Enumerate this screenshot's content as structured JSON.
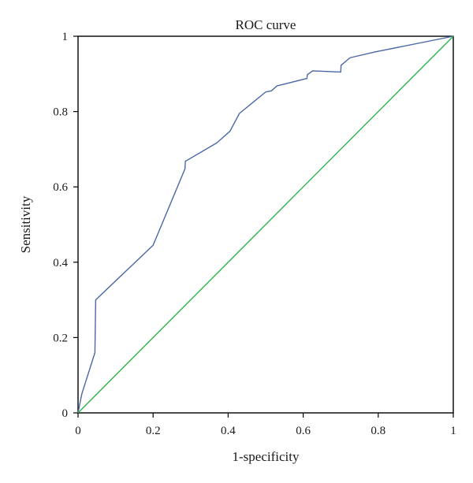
{
  "chart_data": {
    "type": "line",
    "title": "ROC curve",
    "xlabel": "1-specificity",
    "ylabel": "Sensitivity",
    "xlim": [
      0,
      1
    ],
    "ylim": [
      0,
      1
    ],
    "xticks": [
      "0",
      "0.2",
      "0.4",
      "0.6",
      "0.8",
      "1"
    ],
    "yticks": [
      "0",
      "0.2",
      "0.4",
      "0.6",
      "0.8",
      "1"
    ],
    "grid": false,
    "series": [
      {
        "color": "#4a68a6",
        "x": [
          0,
          0.01,
          0.045,
          0.047,
          0.2,
          0.285,
          0.286,
          0.37,
          0.405,
          0.43,
          0.5,
          0.515,
          0.53,
          0.61,
          0.611,
          0.625,
          0.7,
          0.701,
          0.725,
          0.79,
          1.0
        ],
        "y": [
          0,
          0.05,
          0.16,
          0.3,
          0.445,
          0.648,
          0.668,
          0.717,
          0.748,
          0.795,
          0.852,
          0.855,
          0.868,
          0.888,
          0.898,
          0.908,
          0.905,
          0.923,
          0.943,
          0.958,
          1.0
        ]
      },
      {
        "color": "#2db34a",
        "x": [
          0,
          1
        ],
        "y": [
          0,
          1
        ]
      }
    ]
  }
}
